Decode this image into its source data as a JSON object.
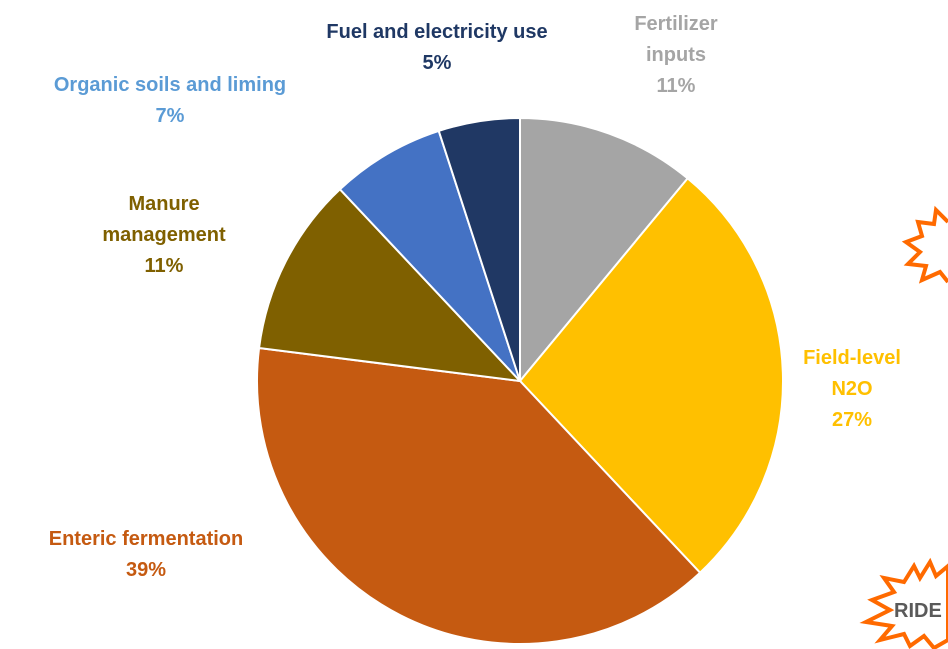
{
  "chart_data": {
    "type": "pie",
    "title": "",
    "series": [
      {
        "name": "",
        "values": [
          11,
          27,
          39,
          11,
          7,
          5
        ]
      }
    ],
    "slices": [
      {
        "label_lines": [
          "Fertilizer",
          "inputs"
        ],
        "value": 11,
        "value_label": "11%",
        "color": "#a5a5a5",
        "label_color": "#a5a5a5"
      },
      {
        "label_lines": [
          "Field-level",
          "N2O"
        ],
        "value": 27,
        "value_label": "27%",
        "color": "#ffc000",
        "label_color": "#ffc000"
      },
      {
        "label_lines": [
          "Enteric fermentation"
        ],
        "value": 39,
        "value_label": "39%",
        "color": "#c55a11",
        "label_color": "#c55a11"
      },
      {
        "label_lines": [
          "Manure",
          "management"
        ],
        "value": 11,
        "value_label": "11%",
        "color": "#7f6000",
        "label_color": "#7f6000"
      },
      {
        "label_lines": [
          "Organic soils and liming"
        ],
        "value": 7,
        "value_label": "7%",
        "color": "#4472c4",
        "label_color": "#5b9bd5"
      },
      {
        "label_lines": [
          "Fuel and electricity use"
        ],
        "value": 5,
        "value_label": "5%",
        "color": "#203864",
        "label_color": "#1f3864"
      }
    ],
    "start_angle_deg": 0,
    "direction": "clockwise",
    "legend": "none"
  },
  "decorations": {
    "burst_upper_color": "#ff6a00",
    "burst_lower_color": "#ff6a00",
    "burst_lower_text": "RIDE"
  }
}
